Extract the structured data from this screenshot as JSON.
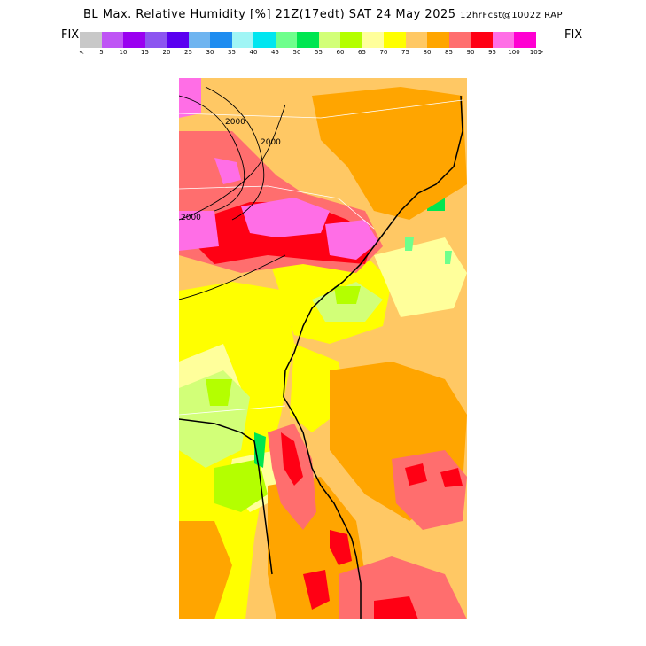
{
  "title": {
    "main": "BL Max. Relative Humidity [%] 21Z(17edt) SAT 24 May 2025",
    "model": "12hrFcst@1002z RAP"
  },
  "fix_left": "FIX",
  "fix_right": "FIX",
  "legend": {
    "colors": [
      "#c8c8c8",
      "#bf55f5",
      "#9a00f0",
      "#8c55f0",
      "#5a00f0",
      "#6eb4f0",
      "#1e8cf0",
      "#a0f5f5",
      "#00e6f0",
      "#6eff8c",
      "#00e650",
      "#d2ff78",
      "#b4ff00",
      "#ffff9b",
      "#ffff00",
      "#ffc864",
      "#ffa500",
      "#ff6e6e",
      "#ff0014",
      "#ff6ee6",
      "#ff00d2"
    ],
    "tick_labels": [
      "<",
      "5",
      "10",
      "15",
      "20",
      "25",
      "30",
      "35",
      "40",
      "45",
      "50",
      "55",
      "60",
      "65",
      "70",
      "75",
      "80",
      "85",
      "90",
      "95",
      "100",
      "105",
      ">"
    ]
  },
  "map": {
    "contour_labels": [
      "2000",
      "2000",
      "2000"
    ]
  }
}
